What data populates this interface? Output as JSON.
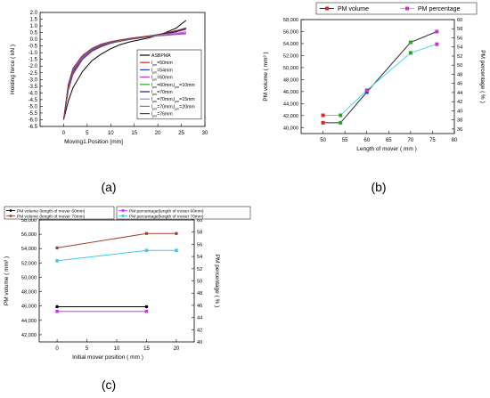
{
  "panel_labels": [
    "(a)",
    "(b)",
    "(c)"
  ],
  "chart_data": [
    {
      "type": "line",
      "panel": "(a)",
      "xlabel": "Moving1.Position [mm]",
      "ylabel": "Holding force ( kN )",
      "xlim": [
        -5,
        30
      ],
      "ylim": [
        -6.5,
        2.0
      ],
      "xticks": [
        "0",
        "5",
        "10",
        "15",
        "20",
        "25",
        "30"
      ],
      "yticks": [
        "2.0",
        "1.5",
        "1.0",
        "0.5",
        "0.0",
        "-0.5",
        "-1.0",
        "-1.5",
        "-2.0",
        "-2.5",
        "-3.0",
        "-3.5",
        "-4.0",
        "-4.5",
        "-5.0",
        "-5.5",
        "-6.0",
        "-6.5"
      ],
      "legend_position": "right",
      "series": [
        {
          "name": "ASBPMA",
          "color": "#000000",
          "x": [
            0,
            1,
            2,
            4,
            6,
            8,
            10,
            12,
            14,
            16,
            18,
            20,
            22,
            24,
            25,
            26
          ],
          "y": [
            -6.0,
            -4.6,
            -3.6,
            -2.4,
            -1.6,
            -1.1,
            -0.7,
            -0.4,
            -0.2,
            -0.05,
            0.1,
            0.3,
            0.55,
            0.85,
            1.15,
            1.4
          ]
        },
        {
          "name": "lpm=50mm",
          "color": "#d62728",
          "x": [
            0,
            1,
            2,
            4,
            6,
            8,
            10,
            12,
            14,
            16,
            18,
            20,
            22,
            24,
            25,
            26
          ],
          "y": [
            -6.0,
            -3.8,
            -2.6,
            -1.5,
            -0.9,
            -0.55,
            -0.3,
            -0.15,
            -0.02,
            0.08,
            0.18,
            0.28,
            0.4,
            0.55,
            0.65,
            0.75
          ]
        },
        {
          "name": "lpm=54mm",
          "color": "#1f3fbf",
          "x": [
            0,
            1,
            2,
            4,
            6,
            8,
            10,
            12,
            14,
            16,
            18,
            20,
            22,
            24,
            25,
            26
          ],
          "y": [
            -6.0,
            -3.7,
            -2.5,
            -1.45,
            -0.85,
            -0.5,
            -0.28,
            -0.12,
            0.0,
            0.1,
            0.2,
            0.28,
            0.36,
            0.45,
            0.5,
            0.55
          ]
        },
        {
          "name": "lpm=60mm",
          "color": "#cc33cc",
          "x": [
            0,
            1,
            2,
            4,
            6,
            8,
            10,
            12,
            14,
            16,
            18,
            20,
            22,
            24,
            25,
            26
          ],
          "y": [
            -6.0,
            -3.6,
            -2.4,
            -1.4,
            -0.8,
            -0.45,
            -0.25,
            -0.1,
            0.02,
            0.12,
            0.2,
            0.25,
            0.3,
            0.35,
            0.38,
            0.4
          ]
        },
        {
          "name": "lpm=60mm,lpm=10mm",
          "color": "#2ca02c",
          "x": [
            0,
            1,
            2,
            4,
            6,
            8,
            10,
            12,
            14,
            16,
            18,
            20,
            22,
            24,
            25,
            26
          ],
          "y": [
            -6.0,
            -3.55,
            -2.35,
            -1.35,
            -0.78,
            -0.44,
            -0.24,
            -0.1,
            0.02,
            0.12,
            0.2,
            0.26,
            0.33,
            0.42,
            0.48,
            0.55
          ]
        },
        {
          "name": "lpm=70mm",
          "color": "#1a1a8c",
          "x": [
            0,
            1,
            2,
            4,
            6,
            8,
            10,
            12,
            14,
            16,
            18,
            20,
            22,
            24,
            25,
            26
          ],
          "y": [
            -6.0,
            -3.5,
            -2.3,
            -1.3,
            -0.75,
            -0.42,
            -0.22,
            -0.08,
            0.04,
            0.14,
            0.22,
            0.32,
            0.45,
            0.6,
            0.7,
            0.8
          ]
        },
        {
          "name": "lpm=70mm,lpm=15mm",
          "color": "#b07ae0",
          "x": [
            0,
            1,
            2,
            4,
            6,
            8,
            10,
            12,
            14,
            16,
            18,
            20,
            22,
            24,
            25,
            26
          ],
          "y": [
            -6.0,
            -3.45,
            -2.25,
            -1.28,
            -0.72,
            -0.4,
            -0.2,
            -0.07,
            0.05,
            0.15,
            0.22,
            0.3,
            0.38,
            0.45,
            0.5,
            0.55
          ]
        },
        {
          "name": "lpm=70mm,lpm=20mm",
          "color": "#9467bd",
          "x": [
            0,
            1,
            2,
            4,
            6,
            8,
            10,
            12,
            14,
            16,
            18,
            20,
            22,
            24,
            25,
            26
          ],
          "y": [
            -6.0,
            -3.4,
            -2.2,
            -1.25,
            -0.7,
            -0.38,
            -0.19,
            -0.06,
            0.06,
            0.15,
            0.22,
            0.28,
            0.34,
            0.4,
            0.43,
            0.45
          ]
        },
        {
          "name": "lpm=76mm",
          "color": "#8c2d2d",
          "x": [
            0,
            1,
            2,
            4,
            6,
            8,
            10,
            12,
            14,
            16,
            18,
            20,
            22,
            24,
            25,
            26
          ],
          "y": [
            -6.0,
            -3.35,
            -2.15,
            -1.2,
            -0.68,
            -0.36,
            -0.17,
            -0.05,
            0.07,
            0.16,
            0.25,
            0.36,
            0.5,
            0.65,
            0.75,
            0.85
          ]
        }
      ]
    },
    {
      "type": "line",
      "panel": "(b)",
      "xlabel": "Length of mover ( mm )",
      "ylabel": "PM volume ( mm³ )",
      "ylabel2": "PM percentage ( % )",
      "xlim": [
        45,
        80
      ],
      "ylim": [
        39000,
        58000
      ],
      "ylim2": [
        35,
        60
      ],
      "xticks": [
        "50",
        "55",
        "60",
        "65",
        "70",
        "75",
        "80"
      ],
      "yticks": [
        "40,000",
        "42,000",
        "44,000",
        "46,000",
        "48,000",
        "50,000",
        "52,000",
        "54,000",
        "56,000",
        "58,000"
      ],
      "yticks2": [
        "36",
        "38",
        "40",
        "42",
        "44",
        "46",
        "48",
        "50",
        "52",
        "54",
        "56",
        "58",
        "60"
      ],
      "legend_position": "top",
      "series": [
        {
          "name": "PM volume",
          "axis": "left",
          "color": "#2d2d2d",
          "marker_colors": [
            "#d62728",
            "#2ca02c",
            "#1f3fbf",
            "#2ca02c",
            "#cc33cc"
          ],
          "x": [
            50,
            54,
            60,
            70,
            76
          ],
          "y": [
            40800,
            40800,
            45900,
            54200,
            56000
          ]
        },
        {
          "name": "PM percentage",
          "axis": "right",
          "color": "#40d9ff",
          "marker_colors": [
            "#d62728",
            "#2ca02c",
            "#cc33cc",
            "#2ca02c",
            "#cc33cc"
          ],
          "x": [
            50,
            54,
            60,
            70,
            76
          ],
          "y": [
            39,
            39,
            44.5,
            52.7,
            54.6
          ]
        }
      ]
    },
    {
      "type": "line",
      "panel": "(c)",
      "xlabel": "Initial mover position ( mm )",
      "ylabel": "PM volume ( mm³ )",
      "ylabel2": "PM percentage ( % )",
      "xlim": [
        -3,
        23
      ],
      "ylim": [
        41000,
        58000
      ],
      "ylim2": [
        40,
        60
      ],
      "xticks": [
        "0",
        "5",
        "10",
        "15",
        "20"
      ],
      "yticks": [
        "42,000",
        "44,000",
        "46,000",
        "48,000",
        "50,000",
        "52,000",
        "54,000",
        "56,000",
        "58,000"
      ],
      "yticks2": [
        "40",
        "42",
        "44",
        "46",
        "48",
        "50",
        "52",
        "54",
        "56",
        "58",
        "60"
      ],
      "legend_position": "top",
      "series": [
        {
          "name": "PM volume (length of mover 60mm)",
          "axis": "left",
          "color": "#000000",
          "x": [
            0,
            15
          ],
          "y": [
            45900,
            45900
          ]
        },
        {
          "name": "PM volume (length of mover 70mm)",
          "axis": "left",
          "color": "#a0412d",
          "x": [
            0,
            15,
            20
          ],
          "y": [
            54100,
            56100,
            56100
          ]
        },
        {
          "name": "PM percentage(length of mover 60mm)",
          "axis": "right",
          "color": "#cc33ff",
          "x": [
            0,
            15
          ],
          "y": [
            45,
            45
          ]
        },
        {
          "name": "PM percentage(length of mover 70mm)",
          "axis": "right",
          "color": "#40c8f0",
          "x": [
            0,
            15,
            20
          ],
          "y": [
            53.3,
            55,
            55
          ]
        }
      ]
    }
  ]
}
